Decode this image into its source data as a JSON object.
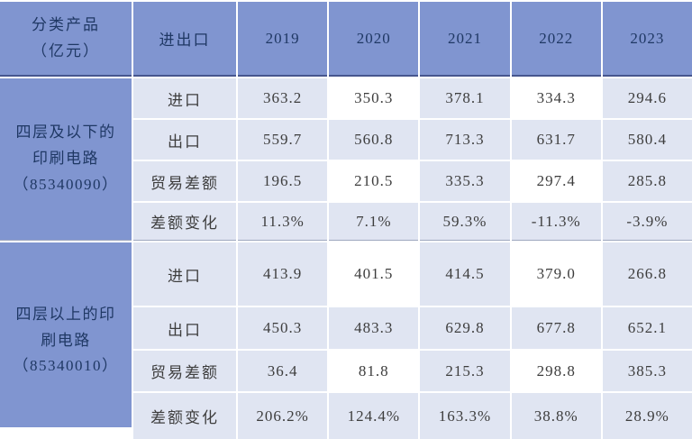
{
  "colors": {
    "header_blue": "#8095D0",
    "cell_blue": "#E0E5F2",
    "highlight_white": "#FFFFFF",
    "header_text": "#1F3864",
    "body_text": "#3D3D3D",
    "header_divider": "#46568E",
    "group_divider": "#9FA8C0"
  },
  "header": {
    "product_lines": [
      "分类产品",
      "（亿元）"
    ],
    "trade": "进出口",
    "years": [
      "2019",
      "2020",
      "2021",
      "2022",
      "2023"
    ]
  },
  "groups": [
    {
      "label_lines": [
        "四层及以下的",
        "印刷电路",
        "（85340090）"
      ],
      "rows": [
        {
          "label": "进口",
          "values": [
            "363.2",
            "350.3",
            "378.1",
            "334.3",
            "294.6"
          ]
        },
        {
          "label": "出口",
          "values": [
            "559.7",
            "560.8",
            "713.3",
            "631.7",
            "580.4"
          ]
        },
        {
          "label": "贸易差额",
          "values": [
            "196.5",
            "210.5",
            "335.3",
            "297.4",
            "285.8"
          ]
        },
        {
          "label": "差额变化",
          "values": [
            "11.3%",
            "7.1%",
            "59.3%",
            "-11.3%",
            "-3.9%"
          ]
        }
      ]
    },
    {
      "label_lines": [
        "四层以上的印",
        "刷电路",
        "（85340010）"
      ],
      "rows": [
        {
          "label": "进口",
          "values": [
            "413.9",
            "401.5",
            "414.5",
            "379.0",
            "266.8"
          ]
        },
        {
          "label": "出口",
          "values": [
            "450.3",
            "483.3",
            "629.8",
            "677.8",
            "652.1"
          ]
        },
        {
          "label": "贸易差额",
          "values": [
            "36.4",
            "81.8",
            "215.3",
            "298.8",
            "385.3"
          ]
        },
        {
          "label": "差额变化",
          "values": [
            "206.2%",
            "124.4%",
            "163.3%",
            "38.8%",
            "28.9%"
          ]
        }
      ]
    }
  ],
  "chart_data": {
    "type": "table",
    "columns": [
      "分类产品（亿元）",
      "进出口",
      "2019",
      "2020",
      "2021",
      "2022",
      "2023"
    ],
    "rows": [
      [
        "四层及以下的印刷电路（85340090）",
        "进口",
        "363.2",
        "350.3",
        "378.1",
        "334.3",
        "294.6"
      ],
      [
        "四层及以下的印刷电路（85340090）",
        "出口",
        "559.7",
        "560.8",
        "713.3",
        "631.7",
        "580.4"
      ],
      [
        "四层及以下的印刷电路（85340090）",
        "贸易差额",
        "196.5",
        "210.5",
        "335.3",
        "297.4",
        "285.8"
      ],
      [
        "四层及以下的印刷电路（85340090）",
        "差额变化",
        "11.3%",
        "7.1%",
        "59.3%",
        "-11.3%",
        "-3.9%"
      ],
      [
        "四层以上的印刷电路（85340010）",
        "进口",
        "413.9",
        "401.5",
        "414.5",
        "379.0",
        "266.8"
      ],
      [
        "四层以上的印刷电路（85340010）",
        "出口",
        "450.3",
        "483.3",
        "629.8",
        "677.8",
        "652.1"
      ],
      [
        "四层以上的印刷电路（85340010）",
        "贸易差额",
        "36.4",
        "81.8",
        "215.3",
        "298.8",
        "385.3"
      ],
      [
        "四层以上的印刷电路（85340010）",
        "差额变化",
        "206.2%",
        "124.4%",
        "163.3%",
        "38.8%",
        "28.9%"
      ]
    ],
    "highlighted_white_cells": "columns 2020 and 2022 on 进口 and 贸易差额 rows of both groups",
    "legend_position": "none",
    "grid": true
  }
}
